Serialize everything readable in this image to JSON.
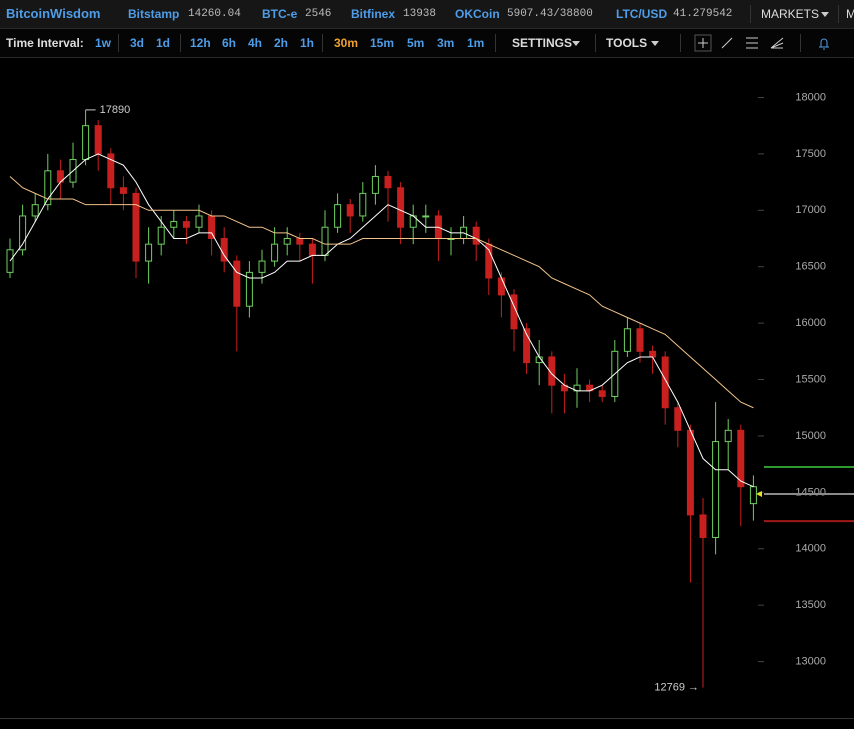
{
  "header": {
    "logo": "BitcoinWisdom",
    "tickers": [
      {
        "name": "Bitstamp",
        "price": "14260.04"
      },
      {
        "name": "BTC-e",
        "price": "2546"
      },
      {
        "name": "Bitfinex",
        "price": "13938"
      },
      {
        "name": "OKCoin",
        "price": "5907.43/38800"
      },
      {
        "name": "LTC/USD",
        "price": "41.279542"
      }
    ],
    "menu": "MARKETS",
    "menu_cut": "M"
  },
  "toolbar": {
    "label": "Time Interval:",
    "interval_groups": [
      [
        "1w",
        "3d",
        "1d"
      ],
      [
        "12h",
        "6h",
        "4h",
        "2h",
        "1h"
      ],
      [
        "30m",
        "15m",
        "5m",
        "3m",
        "1m"
      ]
    ],
    "active": [
      2,
      0
    ],
    "settings": "SETTINGS",
    "tools": "TOOLS"
  },
  "chart_data": {
    "type": "candlestick",
    "categories": [
      null,
      null,
      null,
      null,
      null,
      null,
      null,
      null,
      null,
      null,
      null,
      null,
      null,
      null,
      null,
      null,
      null,
      null,
      null,
      null,
      null,
      null,
      null,
      null,
      null,
      null,
      null,
      null,
      null,
      null,
      null,
      null,
      null,
      null,
      null,
      null,
      null,
      null,
      null,
      null,
      null,
      null,
      null,
      null,
      null,
      null,
      null,
      null,
      null,
      null,
      null,
      null,
      null,
      null,
      null,
      null,
      null,
      null,
      null,
      null
    ],
    "open": [
      16450,
      16650,
      16950,
      17050,
      17350,
      17250,
      17450,
      17750,
      17500,
      17200,
      17150,
      16550,
      16700,
      16850,
      16900,
      16850,
      16950,
      16750,
      16550,
      16150,
      16450,
      16550,
      16700,
      16750,
      16700,
      16600,
      16850,
      17050,
      16950,
      17150,
      17300,
      17200,
      16850,
      16950,
      16950,
      16750,
      16750,
      16850,
      16700,
      16400,
      16250,
      15950,
      15650,
      15700,
      15450,
      15400,
      15450,
      15400,
      15350,
      15750,
      15950,
      15750,
      15700,
      15250,
      15050,
      14300,
      14100,
      14950,
      15050,
      14400
    ],
    "high": [
      16750,
      17050,
      17150,
      17500,
      17450,
      17600,
      17890,
      17800,
      17550,
      17300,
      17200,
      16850,
      16950,
      17000,
      16950,
      17050,
      17000,
      16850,
      16600,
      16550,
      16650,
      16850,
      16850,
      16800,
      16750,
      17000,
      17150,
      17100,
      17250,
      17400,
      17350,
      17250,
      17050,
      17050,
      17000,
      16850,
      16950,
      16900,
      16750,
      16450,
      16300,
      16000,
      15850,
      15750,
      15550,
      15600,
      15500,
      15450,
      15850,
      16050,
      16000,
      15800,
      15750,
      15300,
      15100,
      14450,
      15300,
      15150,
      15100,
      14650
    ],
    "low": [
      16400,
      16600,
      16900,
      17000,
      17100,
      17200,
      17400,
      17350,
      17050,
      17000,
      16400,
      16350,
      16600,
      16750,
      16700,
      16800,
      16600,
      16450,
      15750,
      16050,
      16350,
      16500,
      16600,
      16550,
      16350,
      16550,
      16800,
      16800,
      16900,
      17050,
      16900,
      16700,
      16700,
      16800,
      16550,
      16600,
      16700,
      16550,
      16250,
      16050,
      15750,
      15550,
      15450,
      15200,
      15200,
      15250,
      15300,
      15300,
      15300,
      15700,
      15650,
      15550,
      15100,
      14900,
      13700,
      12769,
      13950,
      14700,
      14200,
      14250
    ],
    "close": [
      16650,
      16950,
      17050,
      17350,
      17250,
      17450,
      17750,
      17500,
      17200,
      17150,
      16550,
      16700,
      16850,
      16900,
      16850,
      16950,
      16750,
      16550,
      16150,
      16450,
      16550,
      16700,
      16750,
      16700,
      16600,
      16850,
      17050,
      16950,
      17150,
      17300,
      17200,
      16850,
      16950,
      16950,
      16750,
      16750,
      16850,
      16700,
      16400,
      16250,
      15950,
      15650,
      15700,
      15450,
      15400,
      15450,
      15400,
      15350,
      15750,
      15950,
      15750,
      15700,
      15250,
      15050,
      14300,
      14100,
      14950,
      15050,
      14550,
      14550
    ],
    "up_color": "#6fcf5f",
    "down_color": "#c8201e",
    "moving_averages": [
      {
        "color": "#ffffff",
        "values": [
          16550,
          16700,
          16900,
          17100,
          17250,
          17350,
          17450,
          17500,
          17450,
          17400,
          17250,
          17050,
          16900,
          16750,
          16750,
          16800,
          16800,
          16600,
          16450,
          16400,
          16400,
          16450,
          16550,
          16550,
          16600,
          16600,
          16700,
          16750,
          16850,
          16950,
          17050,
          17000,
          16950,
          16850,
          16850,
          16800,
          16800,
          16750,
          16650,
          16400,
          16150,
          15900,
          15700,
          15550,
          15450,
          15400,
          15400,
          15450,
          15550,
          15650,
          15700,
          15700,
          15500,
          15300,
          15050,
          14800,
          14700,
          14700,
          14600,
          14550
        ]
      },
      {
        "color": "#f3c48a",
        "values": [
          17300,
          17200,
          17150,
          17100,
          17100,
          17100,
          17050,
          17050,
          17050,
          17050,
          17050,
          17000,
          17000,
          17000,
          17000,
          17000,
          16950,
          16950,
          16900,
          16850,
          16850,
          16800,
          16800,
          16750,
          16750,
          16700,
          16700,
          16700,
          16750,
          16750,
          16750,
          16750,
          16750,
          16750,
          16750,
          16750,
          16750,
          16750,
          16700,
          16650,
          16600,
          16550,
          16500,
          16400,
          16350,
          16300,
          16250,
          16150,
          16100,
          16050,
          16000,
          15950,
          15900,
          15800,
          15700,
          15600,
          15500,
          15400,
          15300,
          15250
        ]
      }
    ],
    "max_label": "17890",
    "min_label": "12769 →",
    "levels": [
      {
        "color": "#2e9a2e",
        "value": 14725
      },
      {
        "color": "#8a8a8a",
        "value": 14485
      },
      {
        "color": "#a01818",
        "value": 14245
      }
    ],
    "ylim": [
      12500,
      18350
    ],
    "yticks": [
      13000,
      13500,
      14000,
      14500,
      15000,
      15500,
      16000,
      16500,
      17000,
      17500,
      18000
    ]
  }
}
